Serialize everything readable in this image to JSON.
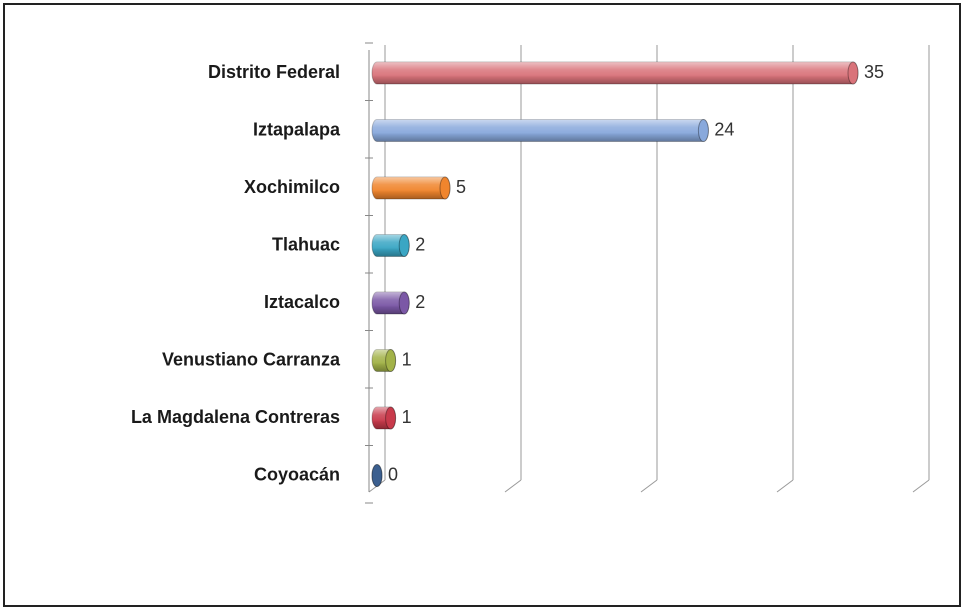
{
  "chart_data": {
    "type": "bar",
    "orientation": "horizontal",
    "categories": [
      "Distrito Federal",
      "Iztapalapa",
      "Xochimilco",
      "Tlahuac",
      "Iztacalco",
      "Venustiano Carranza",
      "La Magdalena Contreras",
      "Coyoacán"
    ],
    "values": [
      35,
      24,
      5,
      2,
      2,
      1,
      1,
      0
    ],
    "colors": [
      "#d9737a",
      "#89a9dc",
      "#f0852d",
      "#3aa6c4",
      "#7b58a6",
      "#a2b248",
      "#c83a4b",
      "#3b5f8f"
    ],
    "xlim": [
      0,
      40
    ],
    "xticks": [
      0,
      10,
      20,
      30,
      40
    ],
    "grid": true,
    "data_labels": true
  }
}
